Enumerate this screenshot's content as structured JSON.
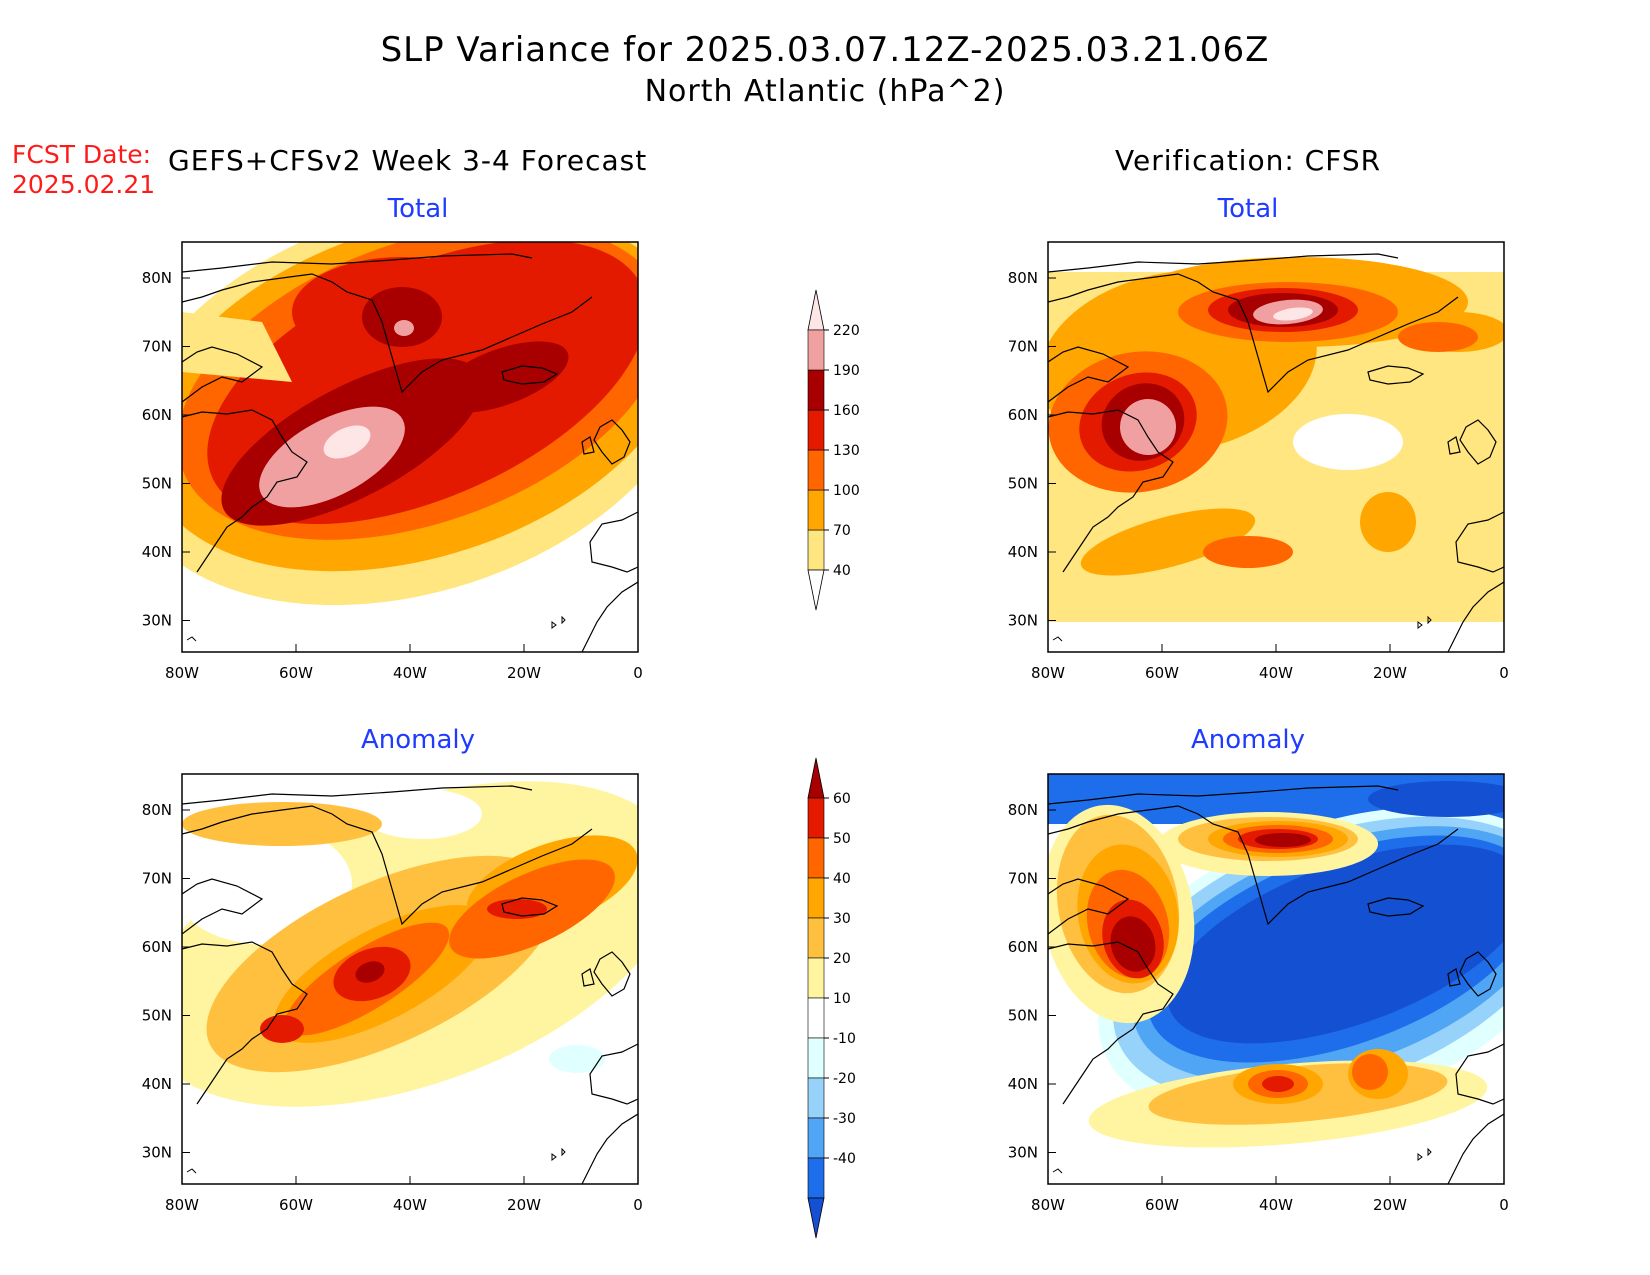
{
  "title": {
    "line1": "SLP Variance for 2025.03.07.12Z-2025.03.21.06Z",
    "line2": "North Atlantic (hPa^2)"
  },
  "fcst_date": {
    "label": "FCST Date:",
    "value": "2025.02.21"
  },
  "columns": {
    "left": "GEFS+CFSv2 Week 3-4 Forecast",
    "right": "Verification: CFSR"
  },
  "panel_titles": {
    "total": "Total",
    "anomaly": "Anomaly"
  },
  "axes": {
    "lon_labels": [
      "80W",
      "60W",
      "40W",
      "20W",
      "0"
    ],
    "lat_labels": [
      "80N",
      "70N",
      "60N",
      "50N",
      "40N",
      "30N"
    ]
  },
  "colorbars": {
    "total": {
      "levels": [
        "40",
        "70",
        "100",
        "130",
        "160",
        "190",
        "220"
      ],
      "colors": [
        "#ffe680",
        "#ffa600",
        "#ff6600",
        "#e31a00",
        "#a80000",
        "#f0a0a0",
        "#ffe6e6"
      ]
    },
    "anomaly": {
      "levels": [
        "60",
        "50",
        "40",
        "30",
        "20",
        "10",
        "-10",
        "-20",
        "-30",
        "-40"
      ],
      "colors": [
        "#a80000",
        "#e31a00",
        "#ff6600",
        "#ffa600",
        "#ffc040",
        "#fff5a0",
        "#ffffff",
        "#e0ffff",
        "#96d2fa",
        "#50a5f5",
        "#1e6eeb",
        "#1450d2"
      ]
    }
  },
  "fields": {
    "total_palette": [
      "#ffe680",
      "#ffa600",
      "#ff6600",
      "#e31a00",
      "#a80000",
      "#f0a0a0",
      "#ffe6e6"
    ],
    "anom_palette": {
      "pos": [
        "#fff5a0",
        "#ffc040",
        "#ffa600",
        "#ff6600",
        "#e31a00",
        "#a80000"
      ],
      "neg": [
        "#e0ffff",
        "#96d2fa",
        "#50a5f5",
        "#1e6eeb",
        "#1450d2"
      ]
    }
  }
}
